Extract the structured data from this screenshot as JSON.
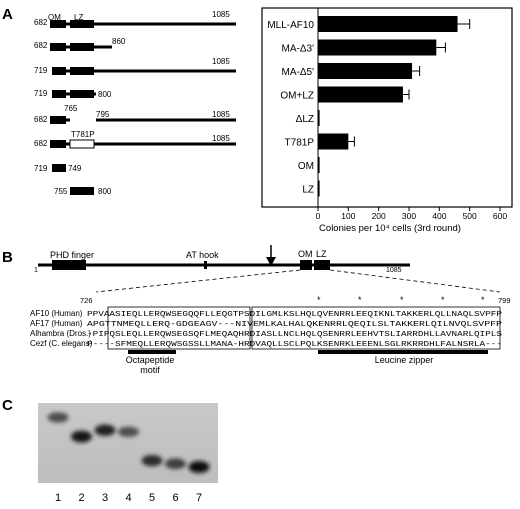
{
  "panels": {
    "a": "A",
    "b": "B",
    "c": "C"
  },
  "panel_a": {
    "construct_labels": {
      "om": "OM",
      "lz": "LZ",
      "n_682": "682",
      "n_719": "719",
      "n_755": "755",
      "n_860": "860",
      "n_1085": "1085",
      "n_800": "800",
      "n_765": "765",
      "n_795": "795",
      "n_749": "749",
      "t781p_box": "T781P"
    }
  },
  "chart_data": {
    "type": "bar",
    "orientation": "horizontal",
    "categories": [
      "MLL-AF10",
      "MA-Δ3'",
      "MA-Δ5'",
      "OM+LZ",
      "ΔLZ",
      "T781P",
      "OM",
      "LZ"
    ],
    "values": [
      460,
      390,
      310,
      280,
      0,
      100,
      0,
      0
    ],
    "errors": [
      40,
      30,
      25,
      20,
      0,
      20,
      0,
      0
    ],
    "xlabel": "Colonies per 10⁴ cells (3rd round)",
    "xticks": [
      "0",
      "100",
      "200",
      "300",
      "400",
      "500",
      "600"
    ],
    "xlim": [
      0,
      600
    ]
  },
  "panel_b": {
    "domains": {
      "phd": "PHD finger",
      "athook": "AT hook",
      "om": "OM",
      "lz": "LZ",
      "start": "1",
      "end": "1085"
    },
    "range_start": "726",
    "range_end": "799",
    "stars": [
      "*",
      "*",
      "*",
      "*",
      "*"
    ],
    "alignment": [
      {
        "name": "AF10 (Human)",
        "seq": "PPVAASIEQLLERQWSEGQQFLLEQGTPSDILGMLKSLHQLQVENRRLEEQIKNLTAKKERLQLLNAQLSVPFP"
      },
      {
        "name": "AF17 (Human)",
        "seq": "APGTTNMEQLLERQ-GDGEAGV---NIVEMLKALHALQKENRRLQEQILSLTAKKERLQILNVQLSVPFP"
      },
      {
        "name": "Alhambra (Dros.)",
        "seq": "-PIPQSLEQLLERQWSEGSQFLMEQAQHRDIASLLNCLHQLQSENRRLEEHVTSLIARRDHLLAVNARLQIPLS"
      },
      {
        "name": "Cezf (C. elegans)",
        "seq": "P----SFMEQLLERQWSGSSLLMANA-HRDVAQLLSCLPQLKSENRKLEEENLSGLRKRRDHLFALNSRLA---"
      }
    ],
    "octapeptide_label": [
      "Octapeptide",
      "motif"
    ],
    "lz_label": "Leucine zipper"
  },
  "panel_c": {
    "lanes": [
      "1",
      "2",
      "3",
      "4",
      "5",
      "6",
      "7"
    ],
    "bands": [
      {
        "lane": 1,
        "y": 0.18,
        "intensity": 0.6
      },
      {
        "lane": 2,
        "y": 0.42,
        "intensity": 0.95
      },
      {
        "lane": 3,
        "y": 0.34,
        "intensity": 0.85
      },
      {
        "lane": 4,
        "y": 0.36,
        "intensity": 0.6
      },
      {
        "lane": 5,
        "y": 0.72,
        "intensity": 0.8
      },
      {
        "lane": 6,
        "y": 0.76,
        "intensity": 0.7
      },
      {
        "lane": 7,
        "y": 0.8,
        "intensity": 1.0
      }
    ]
  }
}
